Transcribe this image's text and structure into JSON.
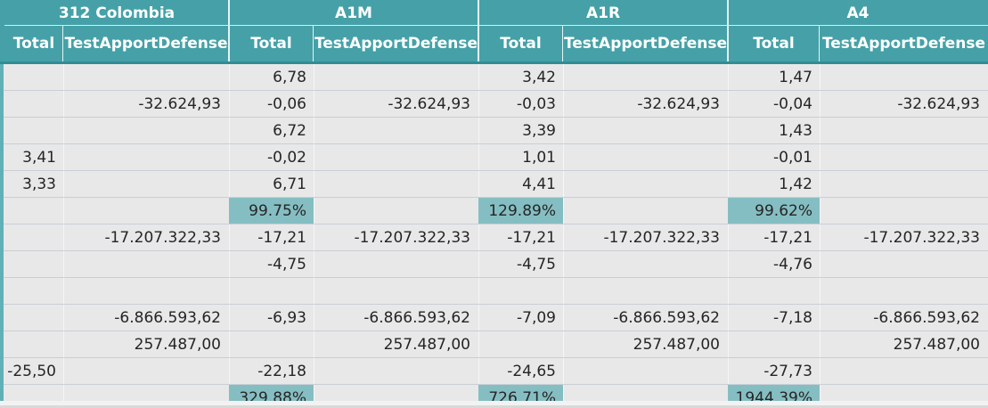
{
  "matrix": {
    "column_groups": [
      {
        "label": "312 Colombia",
        "sub": [
          "Total",
          "TestApportDefense"
        ]
      },
      {
        "label": "A1M",
        "sub": [
          "Total",
          "TestApportDefense"
        ]
      },
      {
        "label": "A1R",
        "sub": [
          "Total",
          "TestApportDefense"
        ]
      },
      {
        "label": "A4",
        "sub": [
          "Total",
          "TestApportDefense"
        ]
      }
    ],
    "rows": [
      [
        "",
        "",
        "6,78",
        "",
        "3,42",
        "",
        "1,47",
        ""
      ],
      [
        "",
        "-32.624,93",
        "-0,06",
        "-32.624,93",
        "-0,03",
        "-32.624,93",
        "-0,04",
        "-32.624,93"
      ],
      [
        "",
        "",
        "6,72",
        "",
        "3,39",
        "",
        "1,43",
        ""
      ],
      [
        "3,41",
        "",
        "-0,02",
        "",
        "1,01",
        "",
        "-0,01",
        ""
      ],
      [
        "3,33",
        "",
        "6,71",
        "",
        "4,41",
        "",
        "1,42",
        ""
      ],
      [
        "",
        "",
        "99.75%",
        "",
        "129.89%",
        "",
        "99.62%",
        ""
      ],
      [
        "",
        "-17.207.322,33",
        "-17,21",
        "-17.207.322,33",
        "-17,21",
        "-17.207.322,33",
        "-17,21",
        "-17.207.322,33"
      ],
      [
        "",
        "",
        "-4,75",
        "",
        "-4,75",
        "",
        "-4,76",
        ""
      ],
      [
        "",
        "",
        "",
        "",
        "",
        "",
        "",
        ""
      ],
      [
        "",
        "-6.866.593,62",
        "-6,93",
        "-6.866.593,62",
        "-7,09",
        "-6.866.593,62",
        "-7,18",
        "-6.866.593,62"
      ],
      [
        "",
        "257.487,00",
        "",
        "257.487,00",
        "",
        "257.487,00",
        "",
        "257.487,00"
      ],
      [
        "-25,50",
        "",
        "-22,18",
        "",
        "-24,65",
        "",
        "-27,73",
        ""
      ],
      [
        "",
        "",
        "329.88%",
        "",
        "726.71%",
        "",
        "1944.39%",
        ""
      ]
    ],
    "highlighted_cells": [
      "5-2",
      "5-4",
      "5-6",
      "12-2",
      "12-4",
      "12-6"
    ],
    "colors": {
      "header": "#45a1a7",
      "highlight": "#85bec2",
      "body": "#e8e8e8"
    }
  }
}
